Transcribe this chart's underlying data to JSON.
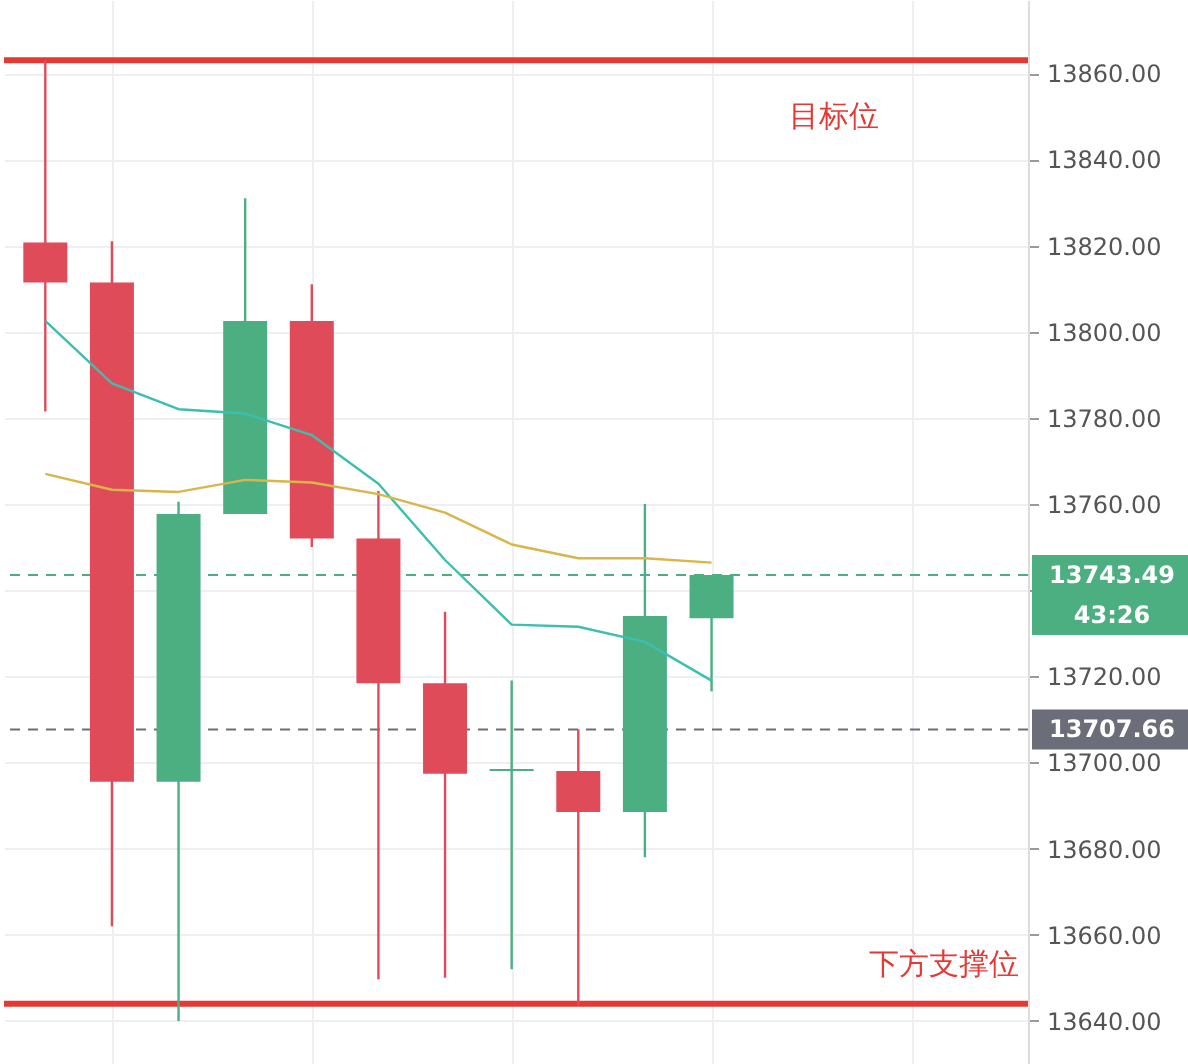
{
  "chart_data": {
    "type": "candlestick",
    "categories": [
      null,
      null,
      null,
      null,
      null,
      null,
      null,
      null,
      null,
      null,
      null,
      null,
      null,
      null,
      null
    ],
    "ohlc": [
      [
        13820.7,
        13863,
        13781.5,
        13811.4
      ],
      [
        13811.4,
        13821,
        13662,
        13695.5
      ],
      [
        13695.5,
        13760.5,
        13640,
        13757.7
      ],
      [
        13757.7,
        13831,
        13757.7,
        13802.5
      ],
      [
        13802.5,
        13811,
        13750,
        13752
      ],
      [
        13752,
        13763,
        13649.7,
        13718.4
      ],
      [
        13718.4,
        13735,
        13650,
        13697.4
      ],
      [
        13698,
        13719,
        13652,
        13698.5
      ],
      [
        13698,
        13707.7,
        13643.6,
        13688.5
      ],
      [
        13688.5,
        13760,
        13678,
        13734
      ],
      [
        13733.5,
        13743.49,
        13716.5,
        13743.49
      ],
      null,
      null,
      null,
      null
    ],
    "colors": [
      "#e04b5a",
      "#e04b5a",
      "#4caf82",
      "#4caf82",
      "#e04b5a",
      "#e04b5a",
      "#e04b5a",
      "#4caf82",
      "#e04b5a",
      "#4caf82",
      "#4caf82",
      null,
      null,
      null,
      null
    ],
    "series": [
      {
        "type": "line",
        "color": "#3bbfb0",
        "values": [
          13802.5,
          13788,
          13782,
          13781,
          13776,
          13764.7,
          13747,
          13732,
          13731.5,
          13728,
          13719,
          null,
          null,
          null,
          null
        ]
      },
      {
        "type": "line",
        "color": "#d9b64a",
        "values": [
          13767,
          13763.3,
          13762.8,
          13765.6,
          13765,
          13762.3,
          13758,
          13750.6,
          13747.4,
          13747.4,
          13746.4,
          null,
          null,
          null,
          null
        ]
      }
    ],
    "ylim": [
      13630,
      13877
    ],
    "yticks": [
      {
        "value": 13640,
        "label": "13640.00"
      },
      {
        "value": 13660,
        "label": "13660.00"
      },
      {
        "value": 13680,
        "label": "13680.00"
      },
      {
        "value": 13700,
        "label": "13700.00"
      },
      {
        "value": 13720,
        "label": "13720.00"
      },
      {
        "value": 13740,
        "label": null
      },
      {
        "value": 13760,
        "label": "13760.00"
      },
      {
        "value": 13780,
        "label": "13780.00"
      },
      {
        "value": 13800,
        "label": "13800.00"
      },
      {
        "value": 13820,
        "label": "13820.00"
      },
      {
        "value": 13840,
        "label": "13840.00"
      },
      {
        "value": 13860,
        "label": "13860.00"
      }
    ],
    "ref_lines": [
      {
        "axis": "y",
        "value": 13743.49,
        "label": "13743.49",
        "color": "#4caf82",
        "line_style": "dashed"
      },
      {
        "axis": "y",
        "value": 13707.66,
        "label": "13707.66",
        "color": "#6b6e78",
        "line_style": "dashed"
      },
      {
        "axis": "y",
        "value": 13863,
        "label": "目标位",
        "color": "#e53935",
        "line_style": "solid"
      },
      {
        "axis": "y",
        "value": 13644,
        "label": "下方支撑位",
        "color": "#e53935",
        "line_style": "solid"
      }
    ],
    "annotations": [
      "43:26"
    ],
    "grid": true,
    "tick_labels": "y"
  }
}
